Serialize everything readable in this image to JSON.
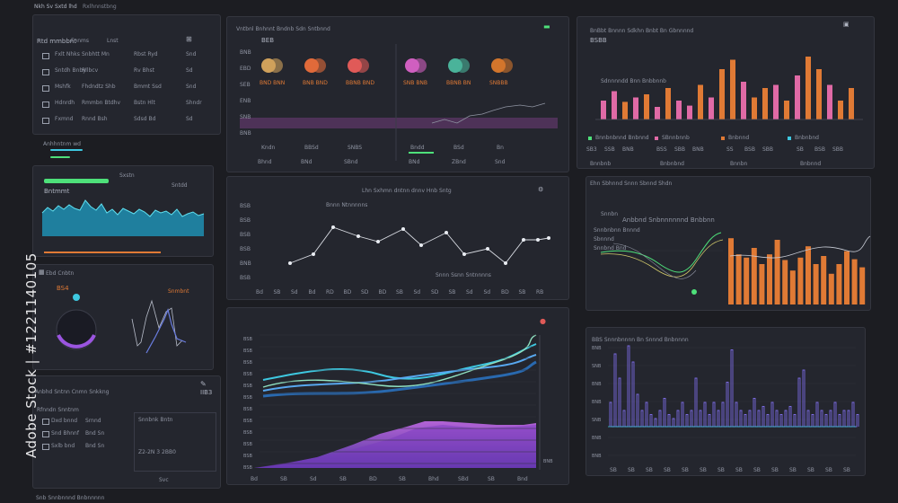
{
  "header": {
    "title": "Nkh Sv Sxtd lhd",
    "subtitle": "Rxlhnnstbng"
  },
  "side_panel": {
    "title": "Rtd mmbbnt",
    "col_a": "Fnnms",
    "col_b": "Lnst",
    "rows": [
      {
        "a": "Fxlt Nhks",
        "b": "Snbhtt Mn",
        "c": "Rbst Ryd",
        "d": "Snd"
      },
      {
        "a": "Sntdh Bnby",
        "b": "Rllbcv",
        "c": "Rv Bhst",
        "d": "Sd"
      },
      {
        "a": "Mshfk",
        "b": "Fhdndtz Shb",
        "c": "Bmmt Ssd",
        "d": "Snd"
      },
      {
        "a": "Hdnrdh",
        "b": "Rmmbn Btdhv",
        "c": "Bstn Hlt",
        "d": "Shndr"
      },
      {
        "a": "Fxmnd",
        "b": "Rnnd Bsh",
        "c": "Sdsd Bd",
        "d": "Sd"
      }
    ],
    "progress_title": "Anhhntnm wd",
    "progress_values": [
      0.22,
      0.2
    ]
  },
  "stream_panel": {
    "label": "Sxstn",
    "sublabel": "Sntdd",
    "title": "Bntmmt"
  },
  "gauge_panel": {
    "title": "Ebd Cnbtn",
    "value_a": "BS4",
    "value_b": "Snmbnt"
  },
  "bottom_left_panel": {
    "title": "Anbhd Sntnn Cnmn Snkkng",
    "value": "IIB3",
    "subtitle": "Rfnndn Snntnm",
    "rows": [
      {
        "a": "Dxd bnnd",
        "b": "Srnnd"
      },
      {
        "a": "Snd Bhnnf",
        "b": "Bnd Sn"
      },
      {
        "a": "Sxlb bnd",
        "b": "Bnd Sn"
      }
    ],
    "col_title": "Snnbnk Bntn",
    "code": "Z2-2N 3 2BB0",
    "footer": "Svc"
  },
  "kpi_panel": {
    "title": "Vntbnl Bnhnnt Bndnb Sdn Sntbnnd",
    "value": "BEB",
    "row_labels": [
      "BNB",
      "EBD",
      "SEB",
      "ENB",
      "SNB",
      "BNB"
    ],
    "left_labels": [
      "Kndn",
      "BBSd",
      "SNBS"
    ],
    "right_labels": [
      "Bndd",
      "BSd",
      "Bn"
    ],
    "cells": [
      {
        "color": "#d0a15b",
        "label": "BND BNN"
      },
      {
        "color": "#e06a3a",
        "label": "BNB BND"
      },
      {
        "color": "#e05a58",
        "label": "BBNB BND"
      },
      {
        "color": "#d05fc0",
        "label": "SNB BNB"
      },
      {
        "color": "#4ab39a",
        "label": "BBNB BN"
      },
      {
        "color": "#d2752c",
        "label": "SNBBB"
      }
    ],
    "tabs": [
      "Bhnd",
      "BNd",
      "SBnd",
      "BNd",
      "ZBnd",
      "Snd"
    ]
  },
  "line_panel": {
    "title": "Lhn Sxhmn dntnn dnnv Hnb Sntg",
    "annotation_a": "Bnnn Ntnnnnns",
    "annotation_b": "Snnn Ssnn Sntnnnns",
    "x_ticks": [
      "Bd",
      "SB",
      "Sd",
      "Bd",
      "RD",
      "BD",
      "SD",
      "BD",
      "SB",
      "Sd",
      "SD",
      "SB",
      "Sd",
      "Sd",
      "BD",
      "SB",
      "RB"
    ],
    "y_ticks": [
      "BSB",
      "BSB",
      "BSB",
      "BSB",
      "BNB",
      "BSB"
    ]
  },
  "wave_panel": {
    "y_ticks": [
      "BSB",
      "BSB",
      "BSB",
      "BSB",
      "BSB",
      "BSB",
      "BSB",
      "BSB",
      "BSB",
      "BSB",
      "BSB",
      "BSB"
    ],
    "x_ticks": [
      "Bd",
      "SB",
      "Sd",
      "SB",
      "BD",
      "SB",
      "Bhd",
      "SBd",
      "SB",
      "Bnd"
    ],
    "footer": "BNB"
  },
  "bars_top_panel": {
    "title": "BnBbt Bnnnn Sdkhn Bnbt Bn Gbnnnnd",
    "value": "BSBB",
    "legend": "Sdnnnndd Bnn Bnbbnnb",
    "legend_items": [
      "Bnnbnbnnd Bnbnnd",
      "SBnnbnnb",
      "Bnbnnd",
      "Bnbnbnd"
    ],
    "stats": [
      {
        "a": "SB3",
        "b": "SSB",
        "c": "BNB"
      },
      {
        "a": "BSS",
        "b": "SBB",
        "c": "BNB"
      },
      {
        "a": "SS",
        "b": "BSB",
        "c": "SBB"
      },
      {
        "a": "SB",
        "b": "BSB",
        "c": "SBB"
      }
    ],
    "foot": [
      "Bnnbnb",
      "Bnbnbnd",
      "Bnnbn",
      "Bnbnnd"
    ]
  },
  "mixed_panel": {
    "title": "Ehn Sbhnnd Snnn Sbnnd Shdn",
    "legend_a": "Snnbn",
    "annotation": "Anbbnd Snbnnnnnnd Bnbbnn",
    "items": [
      "Snnbnbnn Bnnnd",
      "Sbnnnd",
      "Snnbnd Bnd"
    ]
  },
  "spike_panel": {
    "title": "BBS Snnnbnnnn Bn Snnnd Bnbnnnn",
    "y_ticks": [
      "BNB",
      "SNB",
      "BNB",
      "BNB",
      "SNB",
      "BNB",
      "BNB"
    ],
    "x_ticks": [
      "SB",
      "SB",
      "SB",
      "SB",
      "SB",
      "SB",
      "SB",
      "SB",
      "SB",
      "SB",
      "SB",
      "SB",
      "SB",
      "SB"
    ]
  },
  "footer_label": "Snb Snnbnnnd Bnbnnnnn",
  "watermark": "Adobe Stock | #1221140105",
  "colors": {
    "bg": "#1c1d22",
    "panel": "#24262e",
    "orange": "#e07a35",
    "pink": "#e06aa6",
    "cyan": "#3ec8e0",
    "purple": "#9b55e0",
    "green": "#4ee07a"
  }
}
